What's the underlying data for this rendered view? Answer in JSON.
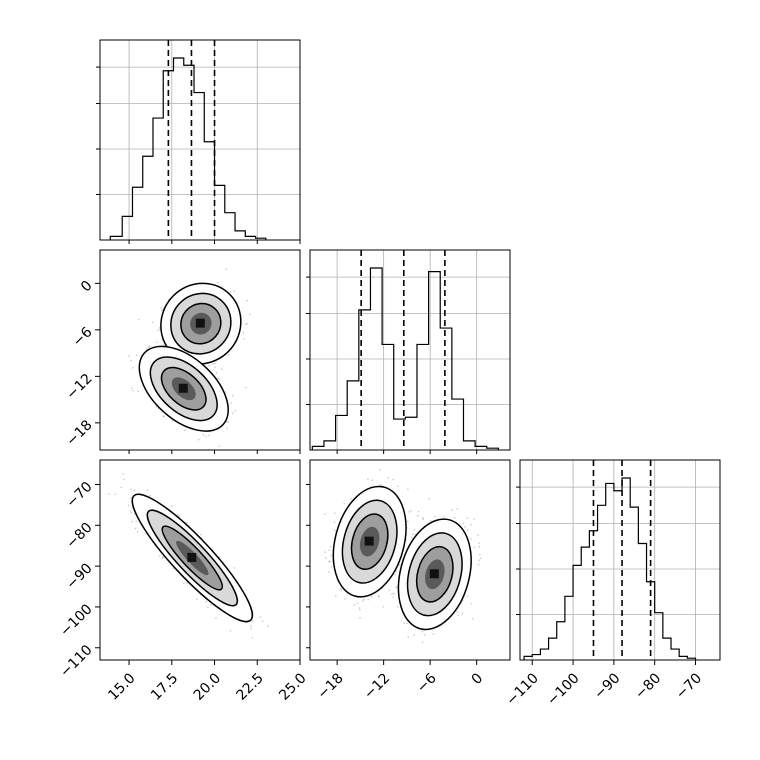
{
  "chart_data": {
    "type": "corner",
    "params": [
      {
        "ticks": [
          15.0,
          17.5,
          20.0,
          22.5,
          25.0
        ],
        "tick_labels": [
          "15.0",
          "17.5",
          "20.0",
          "22.5",
          "25.0"
        ],
        "range": [
          13.3,
          25.0
        ]
      },
      {
        "ticks": [
          -18,
          -12,
          -6,
          0
        ],
        "tick_labels": [
          "−18",
          "−12",
          "−6",
          "0"
        ],
        "range": [
          -21.5,
          4.3
        ]
      },
      {
        "ticks": [
          -110,
          -100,
          -90,
          -80,
          -70
        ],
        "tick_labels": [
          "−110",
          "−100",
          "−90",
          "−80",
          "−70"
        ],
        "range": [
          -113,
          -64
        ]
      }
    ],
    "histograms": [
      {
        "bin_edges": [
          13.9,
          14.6,
          15.2,
          15.8,
          16.4,
          17.0,
          17.6,
          18.2,
          18.8,
          19.4,
          20.0,
          20.6,
          21.2,
          21.8,
          22.4,
          23.0
        ],
        "counts": [
          0.02,
          0.13,
          0.29,
          0.46,
          0.67,
          0.93,
          1.0,
          0.96,
          0.81,
          0.54,
          0.3,
          0.15,
          0.05,
          0.02,
          0.01
        ],
        "quantiles": [
          17.3,
          18.65,
          20.0
        ]
      },
      {
        "bin_edges": [
          -21.2,
          -19.7,
          -18.2,
          -16.7,
          -15.2,
          -13.7,
          -12.2,
          -10.7,
          -9.2,
          -7.7,
          -6.2,
          -4.7,
          -3.2,
          -1.7,
          -0.2,
          1.3,
          2.8
        ],
        "counts": [
          0.02,
          0.05,
          0.19,
          0.38,
          0.77,
          1.0,
          0.58,
          0.17,
          0.18,
          0.58,
          0.98,
          0.67,
          0.28,
          0.05,
          0.02,
          0.01
        ],
        "quantiles": [
          -14.9,
          -9.4,
          -4.1
        ]
      },
      {
        "bin_edges": [
          -112,
          -110,
          -108,
          -106,
          -104,
          -102,
          -100,
          -98,
          -96,
          -94,
          -92,
          -90,
          -88,
          -86,
          -84,
          -82,
          -80,
          -78,
          -76,
          -74,
          -72,
          -70
        ],
        "counts": [
          0.02,
          0.03,
          0.06,
          0.12,
          0.21,
          0.35,
          0.52,
          0.62,
          0.71,
          0.85,
          0.97,
          0.93,
          1.0,
          0.84,
          0.64,
          0.43,
          0.26,
          0.12,
          0.06,
          0.02,
          0.01
        ],
        "quantiles": [
          -95.0,
          -88.0,
          -81.0
        ]
      }
    ],
    "scatter_2d": [
      {
        "xi": 0,
        "yi": 1,
        "clusters": [
          {
            "cx": 19.2,
            "cy": -5.2,
            "sx": 0.9,
            "sy": 2.0,
            "rho": 0.05
          },
          {
            "cx": 18.2,
            "cy": -13.6,
            "sx": 1.0,
            "sy": 2.1,
            "rho": -0.5
          }
        ]
      },
      {
        "xi": 0,
        "yi": 2,
        "clusters": [
          {
            "cx": 18.7,
            "cy": -88.0,
            "sx": 1.35,
            "sy": 6.0,
            "rho": -0.9
          }
        ]
      },
      {
        "xi": 1,
        "yi": 2,
        "clusters": [
          {
            "cx": -13.8,
            "cy": -84.0,
            "sx": 1.8,
            "sy": 5.2,
            "rho": 0.25
          },
          {
            "cx": -5.4,
            "cy": -92.0,
            "sx": 1.8,
            "sy": 5.2,
            "rho": 0.25
          }
        ]
      }
    ]
  }
}
